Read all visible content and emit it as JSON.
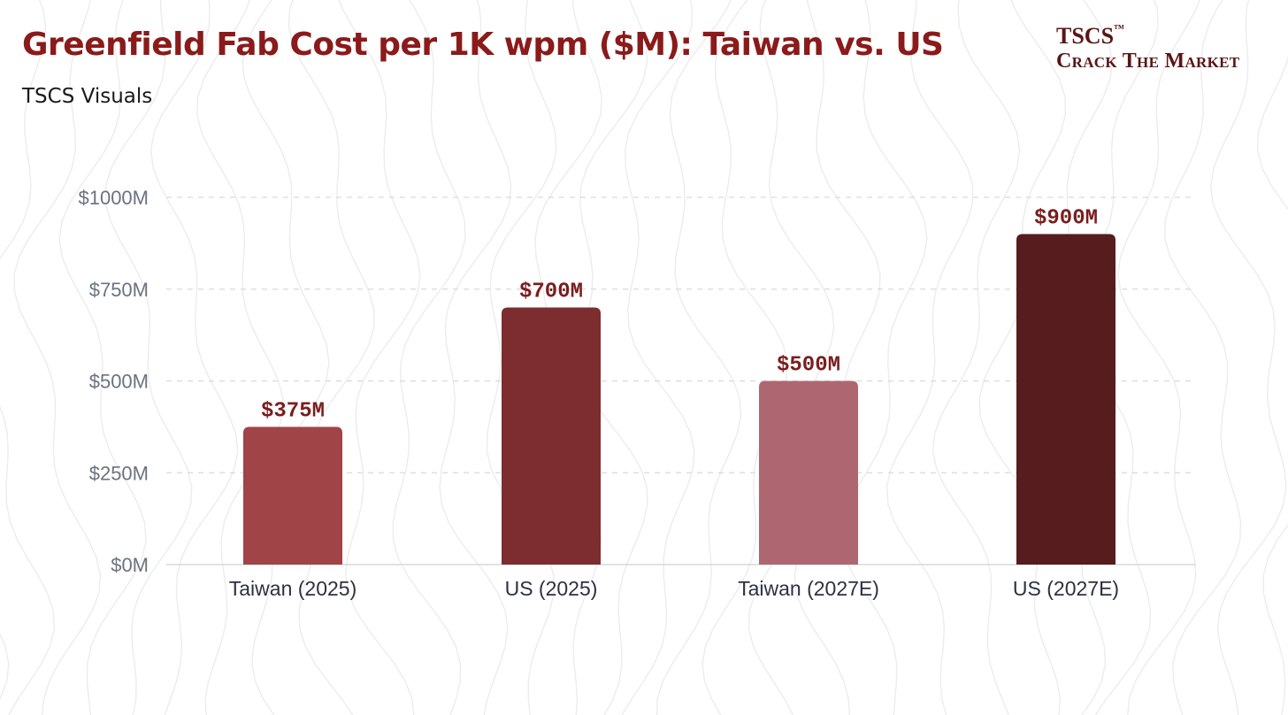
{
  "header": {
    "title": "Greenfield Fab Cost per 1K wpm ($M): Taiwan vs. US",
    "subtitle": "TSCS Visuals"
  },
  "brand": {
    "name": "TSCS",
    "trademark": "™",
    "tagline": "Crack The Market"
  },
  "colors": {
    "title": "#8b1a1a",
    "grid": "#d9d9d9",
    "axis_text": "#6b7280",
    "category_text": "#2d3142",
    "value_label": "#7a1e1e",
    "contour": "#ececec"
  },
  "chart_data": {
    "type": "bar",
    "title": "Greenfield Fab Cost per 1K wpm ($M): Taiwan vs. US",
    "xlabel": "",
    "ylabel": "",
    "categories": [
      "Taiwan (2025)",
      "US (2025)",
      "Taiwan (2027E)",
      "US (2027E)"
    ],
    "values": [
      375,
      700,
      500,
      900
    ],
    "value_labels": [
      "$375M",
      "$700M",
      "$500M",
      "$900M"
    ],
    "bar_colors": [
      "#a04448",
      "#7d2c2f",
      "#ae6770",
      "#561c1e"
    ],
    "ylim": [
      0,
      1000
    ],
    "y_ticks": [
      0,
      250,
      500,
      750,
      1000
    ],
    "y_tick_labels": [
      "$0M",
      "$250M",
      "$500M",
      "$750M",
      "$1000M"
    ],
    "grid": true,
    "legend": "none"
  }
}
